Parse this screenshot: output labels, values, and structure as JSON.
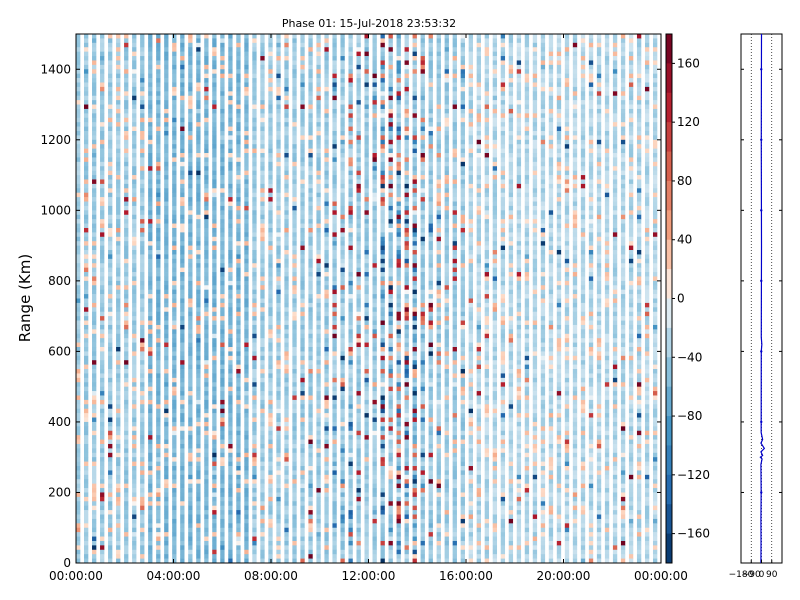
{
  "chart_data": [
    {
      "type": "heatmap",
      "title": "Phase 01: 15-Jul-2018 23:53:32",
      "xlabel": "",
      "ylabel": "Range (Km)",
      "x_ticks": [
        "00:00:00",
        "04:00:00",
        "08:00:00",
        "12:00:00",
        "16:00:00",
        "20:00:00",
        "00:00:00"
      ],
      "x_range_hours": [
        0,
        24
      ],
      "ylim": [
        0,
        1500
      ],
      "y_ticks": [
        0,
        200,
        400,
        600,
        800,
        1000,
        1200,
        1400
      ],
      "colorbar": {
        "ticks": [
          160,
          120,
          80,
          40,
          0,
          -40,
          -80,
          -120,
          -160
        ],
        "range": [
          -180,
          180
        ],
        "colormap": "RdBu_r"
      },
      "colors": {
        "neg_end": "#053061",
        "neg_mid": "#4393c3",
        "light_blue": "#d1e5f0",
        "white": "#f7f7f7",
        "light_red": "#fddbc7",
        "pos_mid": "#d6604d",
        "pos_end": "#67001f"
      }
    },
    {
      "type": "line",
      "x_ticks": [
        "−180",
        "−90",
        "0",
        "90"
      ],
      "xlim": [
        -180,
        180
      ],
      "ylim": [
        0,
        1500
      ],
      "profile": [
        {
          "x": -5,
          "y": 0
        },
        {
          "x": -4,
          "y": 60
        },
        {
          "x": -5,
          "y": 120
        },
        {
          "x": -3,
          "y": 200
        },
        {
          "x": -5,
          "y": 280
        },
        {
          "x": 5,
          "y": 295
        },
        {
          "x": -10,
          "y": 300
        },
        {
          "x": 10,
          "y": 305
        },
        {
          "x": -5,
          "y": 315
        },
        {
          "x": 25,
          "y": 325
        },
        {
          "x": -5,
          "y": 340
        },
        {
          "x": 10,
          "y": 350
        },
        {
          "x": -3,
          "y": 370
        },
        {
          "x": -2,
          "y": 600
        },
        {
          "x": 3,
          "y": 620
        },
        {
          "x": -2,
          "y": 640
        },
        {
          "x": 0,
          "y": 900
        },
        {
          "x": -2,
          "y": 1200
        },
        {
          "x": 0,
          "y": 1500
        }
      ]
    }
  ]
}
